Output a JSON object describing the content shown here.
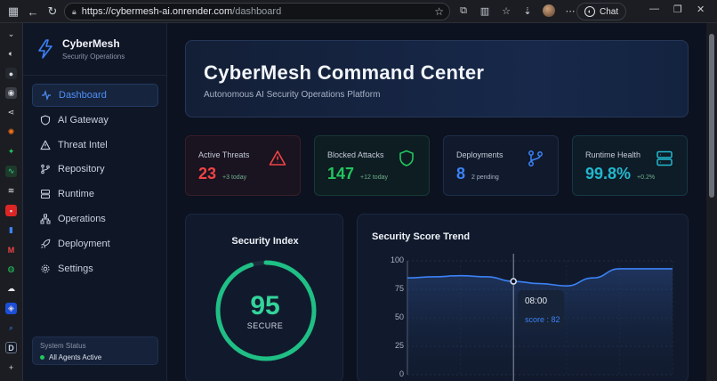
{
  "browser": {
    "url_host": "https://cybermesh-ai.onrender.com",
    "url_path": "/dashboard",
    "chat_label": "Chat"
  },
  "sidebar": {
    "brand_name": "CyberMesh",
    "brand_sub": "Security Operations",
    "items": [
      {
        "label": "Dashboard",
        "icon": "activity-icon",
        "active": true
      },
      {
        "label": "AI Gateway",
        "icon": "shield-icon"
      },
      {
        "label": "Threat Intel",
        "icon": "warning-icon"
      },
      {
        "label": "Repository",
        "icon": "git-branch-icon"
      },
      {
        "label": "Runtime",
        "icon": "server-icon"
      },
      {
        "label": "Operations",
        "icon": "network-icon"
      },
      {
        "label": "Deployment",
        "icon": "rocket-icon"
      },
      {
        "label": "Settings",
        "icon": "gear-icon"
      }
    ],
    "status_title": "System Status",
    "status_value": "All Agents Active"
  },
  "hero": {
    "title": "CyberMesh Command Center",
    "subtitle": "Autonomous AI Security Operations Platform"
  },
  "stats": [
    {
      "label": "Active Threats",
      "value": "23",
      "delta": "+3 today",
      "color": "#ef4444",
      "icon": "warning-icon"
    },
    {
      "label": "Blocked Attacks",
      "value": "147",
      "delta": "+12 today",
      "color": "#22c55e",
      "icon": "shield-icon"
    },
    {
      "label": "Deployments",
      "value": "8",
      "delta": "2 pending",
      "color": "#3b82f6",
      "icon": "git-branch-icon"
    },
    {
      "label": "Runtime Health",
      "value": "99.8%",
      "delta": "+0.2%",
      "color": "#22b8cf",
      "icon": "server-icon"
    }
  ],
  "security_index": {
    "title": "Security Index",
    "score": "95",
    "label": "SECURE",
    "fraction": 0.95,
    "color": "#22c55e"
  },
  "trend": {
    "title": "Security Score Trend",
    "tooltip_time": "08:00",
    "tooltip_value": "score : 82",
    "line_color": "#3b82f6"
  },
  "chart_data": {
    "type": "area",
    "title": "Security Score Trend",
    "xlabel": "",
    "ylabel": "",
    "ylim": [
      0,
      100
    ],
    "yticks": [
      "100",
      "75",
      "50",
      "25",
      "0"
    ],
    "x": [
      0,
      1,
      2,
      3,
      4,
      5,
      6,
      7,
      8,
      9,
      10
    ],
    "values": [
      85,
      86,
      87,
      86,
      82,
      80,
      78,
      85,
      93,
      93,
      93
    ],
    "highlight_index": 4,
    "grid": true
  }
}
